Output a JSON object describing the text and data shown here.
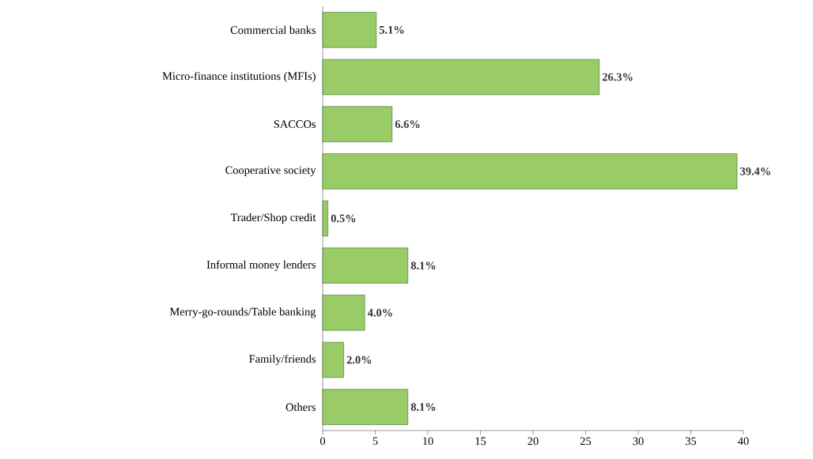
{
  "chart_data": {
    "type": "bar",
    "orientation": "horizontal",
    "categories": [
      "Commercial banks",
      "Micro-finance institutions (MFIs)",
      "SACCOs",
      "Cooperative society",
      "Trader/Shop credit",
      "Informal money lenders",
      "Merry-go-rounds/Table banking",
      "Family/friends",
      "Others"
    ],
    "values": [
      5.1,
      26.3,
      6.6,
      39.4,
      0.5,
      8.1,
      4.0,
      2.0,
      8.1
    ],
    "value_labels": [
      "5.1%",
      "26.3%",
      "6.6%",
      "39.4%",
      "0.5%",
      "8.1%",
      "4.0%",
      "2.0%",
      "8.1%"
    ],
    "color": "#99cc66",
    "xlim": [
      0,
      40
    ],
    "xticks": [
      0,
      5,
      10,
      15,
      20,
      25,
      30,
      35,
      40
    ]
  }
}
